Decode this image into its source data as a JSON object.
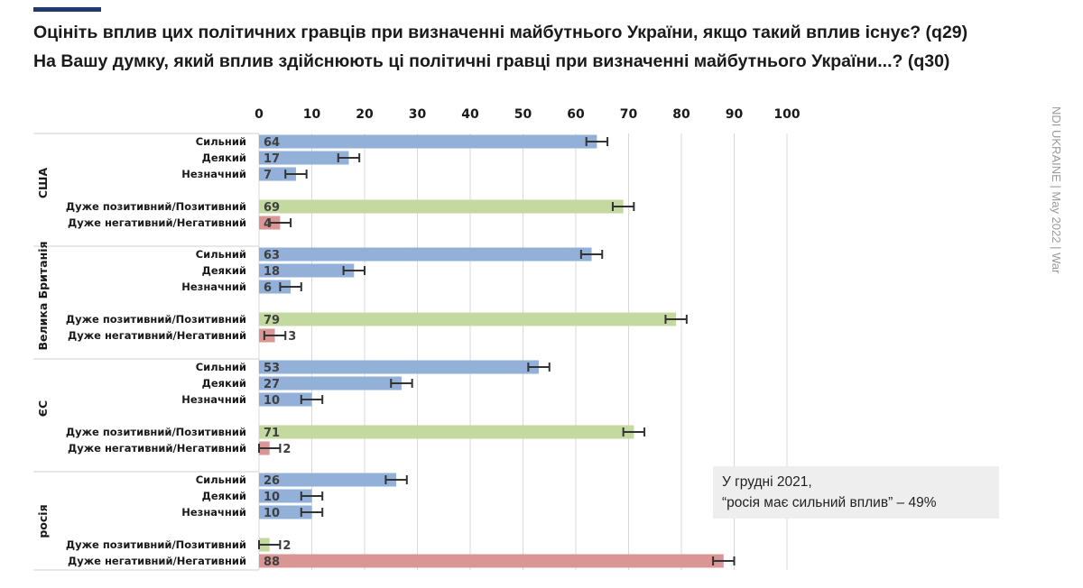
{
  "title_line1": "Оцініть вплив цих політичних гравців при визначенні майбутнього України, якщо такий вплив існує? (q29)",
  "title_line2": "На Вашу думку, який вплив здійснюють ці політичні гравці при визначенні майбутнього України...? (q30)",
  "side_label": "NDI UKRAINE | May 2022 | War",
  "note": {
    "line1": "У грудні 2021,",
    "line2": "“росія має сильний вплив” – 49%"
  },
  "colors": {
    "influence": "#92b0d8",
    "positive": "#c4d9a0",
    "negative": "#d99695",
    "error_bar": "#333333",
    "accent": "#1f3a6e"
  },
  "chart_data": {
    "type": "bar",
    "orientation": "horizontal",
    "xlim": [
      0,
      100
    ],
    "xticks": [
      0,
      10,
      20,
      30,
      40,
      50,
      60,
      70,
      80,
      90,
      100
    ],
    "grid": true,
    "error_bars": true,
    "groups": [
      {
        "name": "США",
        "rows": [
          {
            "label": "Сильний",
            "value": 64,
            "kind": "influence"
          },
          {
            "label": "Деякий",
            "value": 17,
            "kind": "influence"
          },
          {
            "label": "Незначний",
            "value": 7,
            "kind": "influence"
          },
          {
            "label": "Дуже позитивний/Позитивний",
            "value": 69,
            "kind": "positive"
          },
          {
            "label": "Дуже негативний/Негативний",
            "value": 4,
            "kind": "negative"
          }
        ]
      },
      {
        "name": "Велика Британія",
        "rows": [
          {
            "label": "Сильний",
            "value": 63,
            "kind": "influence"
          },
          {
            "label": "Деякий",
            "value": 18,
            "kind": "influence"
          },
          {
            "label": "Незначний",
            "value": 6,
            "kind": "influence"
          },
          {
            "label": "Дуже позитивний/Позитивний",
            "value": 79,
            "kind": "positive"
          },
          {
            "label": "Дуже негативний/Негативний",
            "value": 3,
            "kind": "negative"
          }
        ]
      },
      {
        "name": "ЄС",
        "rows": [
          {
            "label": "Сильний",
            "value": 53,
            "kind": "influence"
          },
          {
            "label": "Деякий",
            "value": 27,
            "kind": "influence"
          },
          {
            "label": "Незначний",
            "value": 10,
            "kind": "influence"
          },
          {
            "label": "Дуже позитивний/Позитивний",
            "value": 71,
            "kind": "positive"
          },
          {
            "label": "Дуже негативний/Негативний",
            "value": 2,
            "kind": "negative"
          }
        ]
      },
      {
        "name": "росія",
        "rows": [
          {
            "label": "Сильний",
            "value": 26,
            "kind": "influence"
          },
          {
            "label": "Деякий",
            "value": 10,
            "kind": "influence"
          },
          {
            "label": "Незначний",
            "value": 10,
            "kind": "influence"
          },
          {
            "label": "Дуже позитивний/Позитивний",
            "value": 2,
            "kind": "positive"
          },
          {
            "label": "Дуже негативний/Негативний",
            "value": 88,
            "kind": "negative"
          }
        ]
      }
    ]
  }
}
